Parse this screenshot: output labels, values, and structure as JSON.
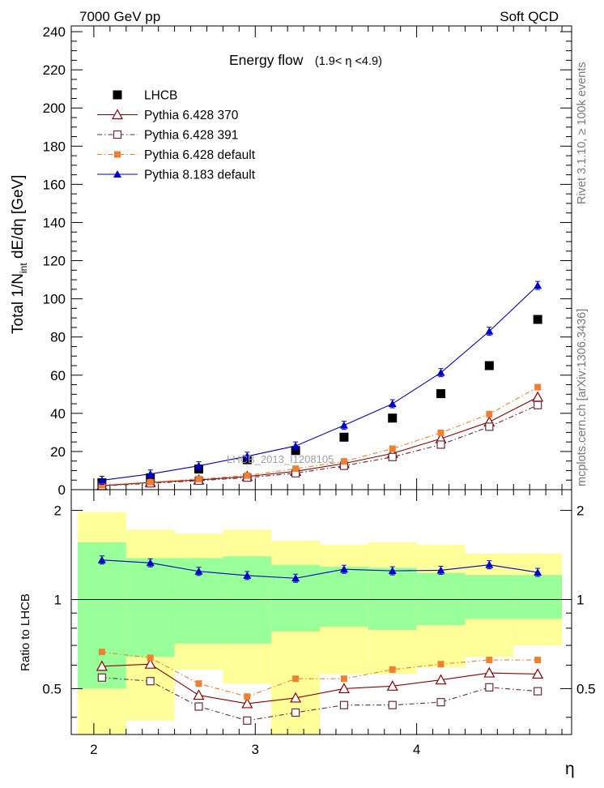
{
  "header": {
    "left": "7000 GeV pp",
    "right": "Soft QCD"
  },
  "side_labels": {
    "rivet": "Rivet 3.1.10, ≥ 100k events",
    "mcplots": "mcplots.cern.ch [arXiv:1306.3436]"
  },
  "watermark": "LHCB_2013_I1208105",
  "chart_data": [
    {
      "type": "scatter",
      "panel": "main",
      "title_main": "Energy flow",
      "title_range": "(1.9< η <4.9)",
      "ylabel": "Total 1/N",
      "ylabel_sub": "int",
      "ylabel_tail": " dE/dη [GeV]",
      "xlabel": "η",
      "xlim": [
        1.86,
        4.96
      ],
      "ylim": [
        0,
        243
      ],
      "xticks": [
        2,
        3,
        4
      ],
      "yticks": [
        0,
        20,
        40,
        60,
        80,
        100,
        120,
        140,
        160,
        180,
        200,
        220,
        240
      ],
      "x": [
        2.05,
        2.35,
        2.65,
        2.95,
        3.25,
        3.55,
        3.85,
        4.15,
        4.45,
        4.75
      ],
      "series": [
        {
          "name": "LHCB",
          "marker": "filled-square",
          "color": "#000000",
          "line": "none",
          "values": [
            3.6,
            6.2,
            10.8,
            15.7,
            20.5,
            27.5,
            37.5,
            50.3,
            65.0,
            89.2
          ]
        },
        {
          "name": "Pythia 6.428 370",
          "marker": "open-triangle",
          "color": "#8b0000",
          "line": "solid",
          "values": [
            2.1,
            3.8,
            5.1,
            6.9,
            9.6,
            13.7,
            19.0,
            26.7,
            35.5,
            48.5
          ]
        },
        {
          "name": "Pythia 6.428 391",
          "marker": "open-square",
          "color": "#6b2a3a",
          "line": "dashdot",
          "values": [
            1.95,
            3.3,
            4.7,
            6.3,
            8.6,
            12.5,
            17.1,
            23.6,
            33.0,
            44.3
          ]
        },
        {
          "name": "Pythia 6.428 default",
          "marker": "filled-square-small",
          "color": "#f08030",
          "line": "dashdot",
          "values": [
            2.4,
            3.9,
            5.6,
            7.4,
            11.0,
            14.8,
            21.5,
            29.8,
            39.6,
            53.7
          ]
        },
        {
          "name": "Pythia 8.183 default",
          "marker": "filled-triangle",
          "color": "#0000c8",
          "line": "solid",
          "values": [
            4.9,
            8.2,
            12.5,
            17.5,
            22.9,
            33.7,
            45.0,
            61.3,
            83.0,
            107.0
          ]
        }
      ]
    },
    {
      "type": "scatter",
      "panel": "ratio",
      "ylabel": "Ratio to LHCB",
      "xlabel": "η",
      "xlim": [
        1.86,
        4.96
      ],
      "ylim": [
        0.35,
        2.35
      ],
      "ylog": true,
      "yticks": [
        0.5,
        1,
        2
      ],
      "ytick_labels": [
        "0.5",
        "1",
        "2"
      ],
      "x": [
        2.05,
        2.35,
        2.65,
        2.95,
        3.25,
        3.55,
        3.85,
        4.15,
        4.45,
        4.75
      ],
      "bin_edges": [
        1.9,
        2.2,
        2.5,
        2.8,
        3.1,
        3.4,
        3.7,
        4.0,
        4.3,
        4.6,
        4.9
      ],
      "uncertainty_bands": {
        "yellow": {
          "color": "#ffff99",
          "lo": [
            0.33,
            0.39,
            0.58,
            0.52,
            0.33,
            0.56,
            0.56,
            0.59,
            0.64,
            0.7
          ],
          "hi": [
            1.97,
            1.72,
            1.67,
            1.72,
            1.58,
            1.53,
            1.56,
            1.53,
            1.43,
            1.43
          ]
        },
        "green": {
          "color": "#99ff99",
          "lo": [
            0.5,
            0.64,
            0.71,
            0.71,
            0.78,
            0.81,
            0.79,
            0.82,
            0.86,
            0.86
          ],
          "hi": [
            1.56,
            1.38,
            1.38,
            1.4,
            1.31,
            1.29,
            1.28,
            1.23,
            1.21,
            1.21
          ]
        }
      },
      "series": [
        {
          "name": "Pythia 6.428 370",
          "marker": "open-triangle",
          "color": "#8b0000",
          "line": "solid",
          "values": [
            0.595,
            0.605,
            0.475,
            0.445,
            0.465,
            0.5,
            0.51,
            0.535,
            0.565,
            0.56
          ]
        },
        {
          "name": "Pythia 6.428 391",
          "marker": "open-square",
          "color": "#6b2a3a",
          "line": "dashdot",
          "values": [
            0.545,
            0.53,
            0.435,
            0.39,
            0.415,
            0.44,
            0.44,
            0.45,
            0.505,
            0.49
          ]
        },
        {
          "name": "Pythia 6.428 default",
          "marker": "filled-square-small",
          "color": "#f08030",
          "line": "dashdot",
          "values": [
            0.665,
            0.635,
            0.52,
            0.47,
            0.54,
            0.54,
            0.58,
            0.605,
            0.625,
            0.625
          ]
        },
        {
          "name": "Pythia 8.183 default",
          "marker": "filled-triangle",
          "color": "#0000c8",
          "line": "solid",
          "values": [
            1.36,
            1.33,
            1.245,
            1.205,
            1.18,
            1.265,
            1.25,
            1.255,
            1.31,
            1.235
          ]
        }
      ]
    }
  ]
}
